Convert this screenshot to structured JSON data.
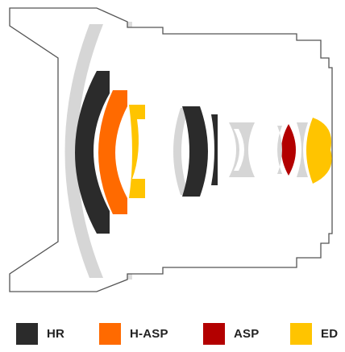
{
  "legend": {
    "items": [
      {
        "label": "HR",
        "color": "#2b2b2b"
      },
      {
        "label": "H-ASP",
        "color": "#ff6a00"
      },
      {
        "label": "ASP",
        "color": "#b30000"
      },
      {
        "label": "ED",
        "color": "#ffc400"
      }
    ]
  },
  "diagram": {
    "housing_color": "#555555",
    "standard_element_color": "#d6d6d6"
  }
}
